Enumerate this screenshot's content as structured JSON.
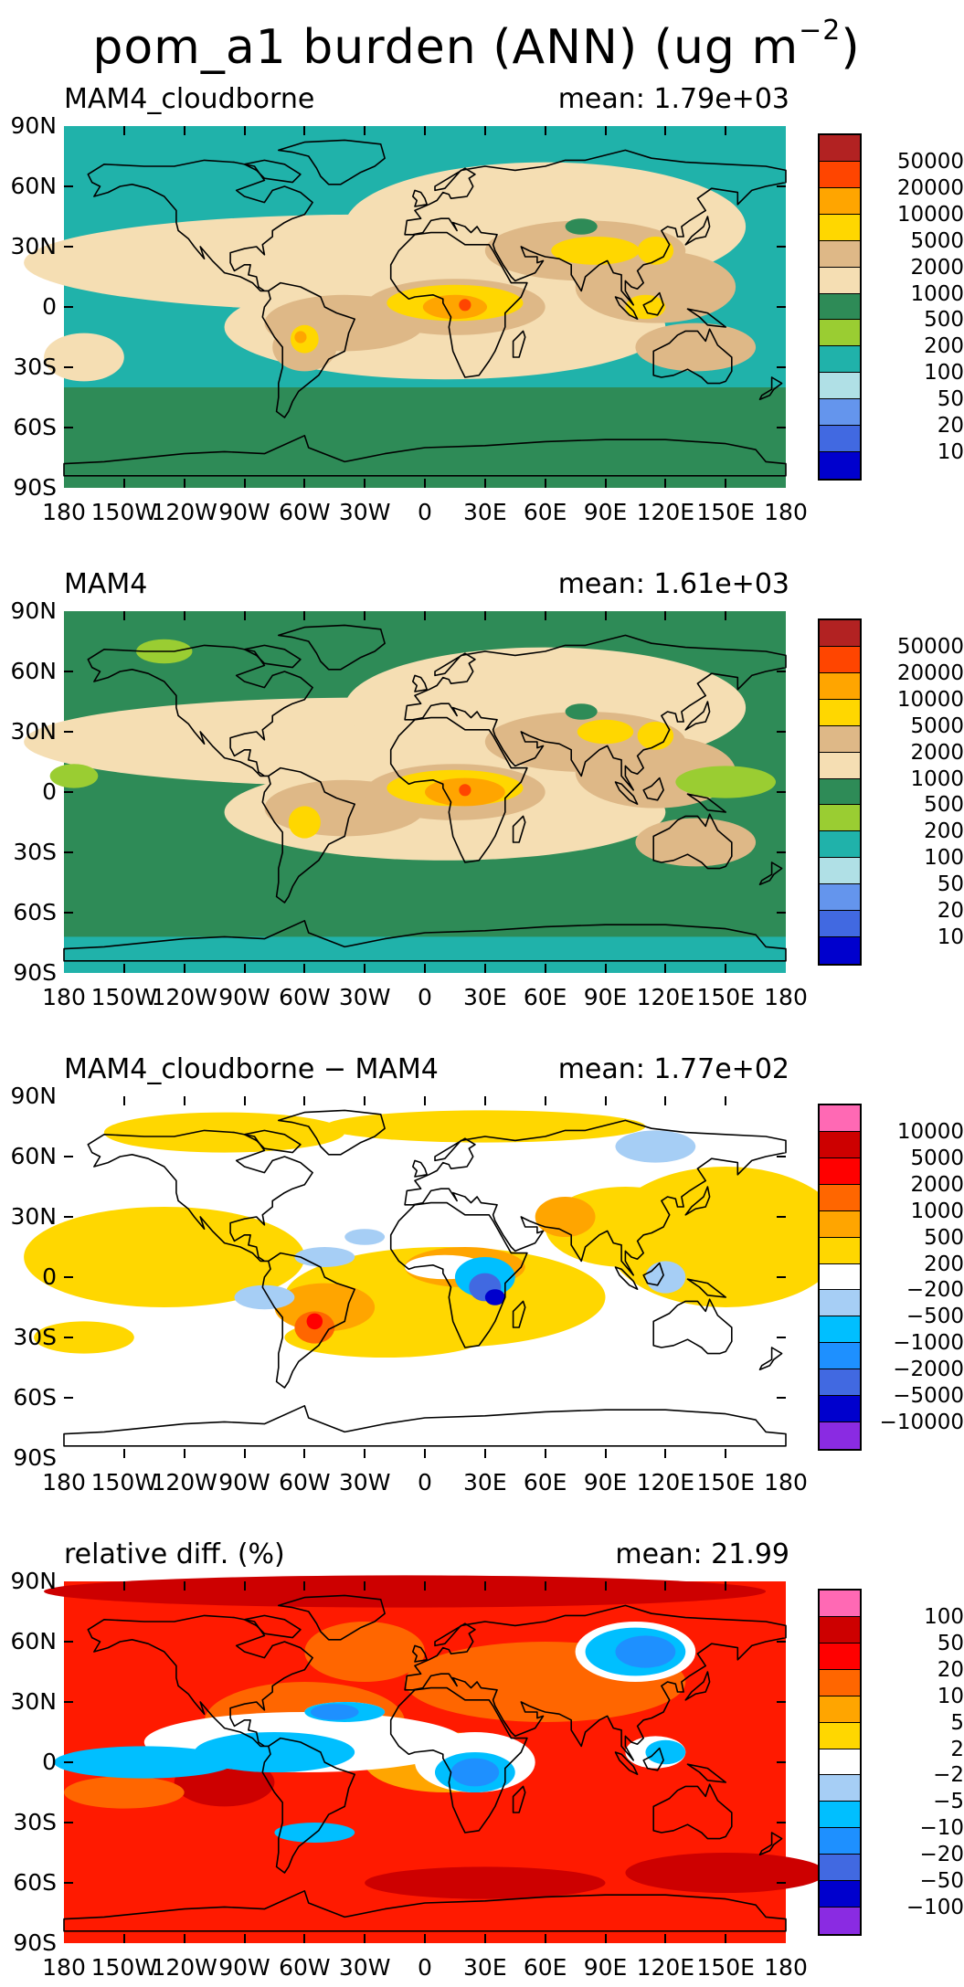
{
  "title": {
    "main": "pom_a1 burden (ANN) (ug m",
    "exponent": "−2",
    "close": ")"
  },
  "lat_labels": [
    "90N",
    "60N",
    "30N",
    "0",
    "30S",
    "60S",
    "90S"
  ],
  "lon_labels": [
    "180",
    "150W",
    "120W",
    "90W",
    "60W",
    "30W",
    "0",
    "30E",
    "60E",
    "90E",
    "120E",
    "150E",
    "180"
  ],
  "panels": [
    {
      "title": "MAM4_cloudborne",
      "mean": "mean: 1.79e+03",
      "background": "#2e8b57",
      "colorbar_labels": [
        "50000",
        "20000",
        "10000",
        "5000",
        "2000",
        "1000",
        "500",
        "200",
        "100",
        "50",
        "20",
        "10"
      ],
      "colorbar_colors": [
        "#b22222",
        "#ff4500",
        "#ffa500",
        "#ffd700",
        "#deb887",
        "#f5deb3",
        "#2e8b57",
        "#9acd32",
        "#20b2aa",
        "#b0e0e6",
        "#6495ed",
        "#4169e1",
        "#0000cd"
      ]
    },
    {
      "title": "MAM4",
      "mean": "mean: 1.61e+03",
      "background": "#2e8b57",
      "colorbar_labels": [
        "50000",
        "20000",
        "10000",
        "5000",
        "2000",
        "1000",
        "500",
        "200",
        "100",
        "50",
        "20",
        "10"
      ],
      "colorbar_colors": [
        "#b22222",
        "#ff4500",
        "#ffa500",
        "#ffd700",
        "#deb887",
        "#f5deb3",
        "#2e8b57",
        "#9acd32",
        "#20b2aa",
        "#b0e0e6",
        "#6495ed",
        "#4169e1",
        "#0000cd"
      ]
    },
    {
      "title": "MAM4_cloudborne − MAM4",
      "mean": "mean: 1.77e+02",
      "background": "#ffffff",
      "colorbar_labels": [
        "10000",
        "5000",
        "2000",
        "1000",
        "500",
        "200",
        "−200",
        "−500",
        "−1000",
        "−2000",
        "−5000",
        "−10000"
      ],
      "colorbar_colors": [
        "#ff69b4",
        "#cd0000",
        "#ff0000",
        "#ff6600",
        "#ffa500",
        "#ffd700",
        "#ffffff",
        "#a6cef5",
        "#00bfff",
        "#1e90ff",
        "#4169e1",
        "#0000cd",
        "#8a2be2"
      ]
    },
    {
      "title": "relative diff. (%)",
      "mean": "mean: 21.99",
      "background": "#ff1a00",
      "colorbar_labels": [
        "100",
        "50",
        "20",
        "10",
        "5",
        "2",
        "−2",
        "−5",
        "−10",
        "−20",
        "−50",
        "−100"
      ],
      "colorbar_colors": [
        "#ff69b4",
        "#cd0000",
        "#ff0000",
        "#ff6600",
        "#ffa500",
        "#ffd700",
        "#ffffff",
        "#a6cef5",
        "#00bfff",
        "#1e90ff",
        "#4169e1",
        "#0000cd",
        "#8a2be2"
      ]
    }
  ]
}
